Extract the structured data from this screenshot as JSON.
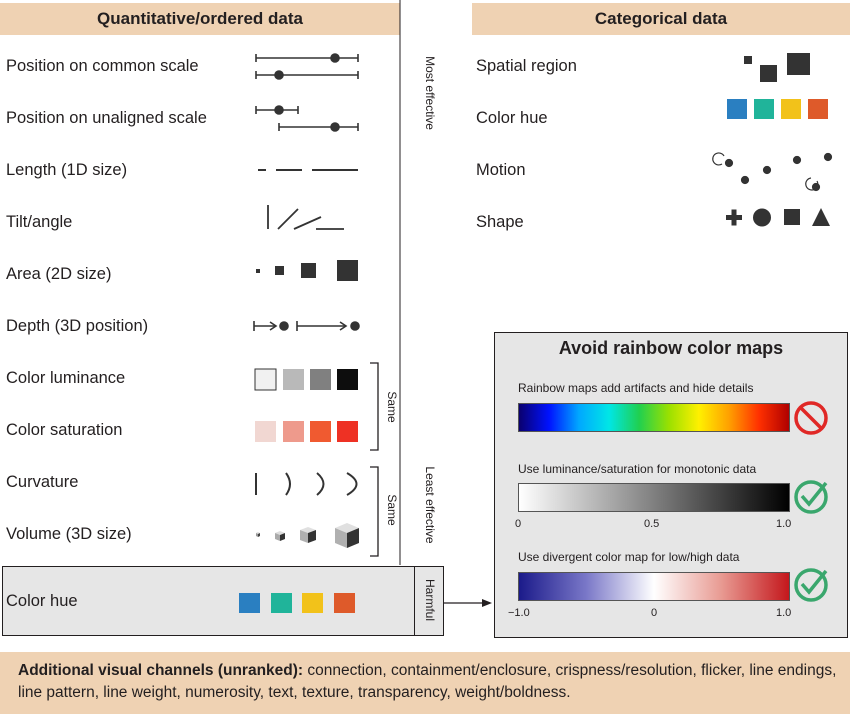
{
  "left_header": "Quantitative/ordered data",
  "right_header": "Categorical data",
  "quant_channels": [
    "Position on common scale",
    "Position on unaligned scale",
    "Length (1D size)",
    "Tilt/angle",
    "Area (2D size)",
    "Depth (3D position)",
    "Color luminance",
    "Color saturation",
    "Curvature",
    "Volume (3D size)"
  ],
  "harmful_channel": "Color hue",
  "cat_channels": [
    "Spatial region",
    "Color hue",
    "Motion",
    "Shape"
  ],
  "axis": {
    "top": "Most effective",
    "bottom": "Least effective",
    "same": "Same",
    "harmful": "Harmful"
  },
  "inset": {
    "title": "Avoid rainbow color maps",
    "rainbow_caption": "Rainbow maps add artifacts and hide details",
    "lum_caption": "Use luminance/saturation for monotonic data",
    "lum_ticks": [
      "0",
      "0.5",
      "1.0"
    ],
    "div_caption": "Use divergent color map for low/high data",
    "div_ticks": [
      "−1.0",
      "0",
      "1.0"
    ]
  },
  "colors": {
    "header_bg": "#efd2b3",
    "hue_blue": "#2a7fc1",
    "hue_teal": "#20b49a",
    "hue_yellow": "#f2c21a",
    "hue_orange": "#de5a2a",
    "check_green": "#3aa76d",
    "forbid_red": "#e02826"
  },
  "footer": {
    "bold": "Additional visual channels (unranked):",
    "text": " connection, containment/enclosure, crispness/resolution, flicker, line endings, line pattern, line weight, numerosity, text, texture, transparency, weight/boldness."
  }
}
